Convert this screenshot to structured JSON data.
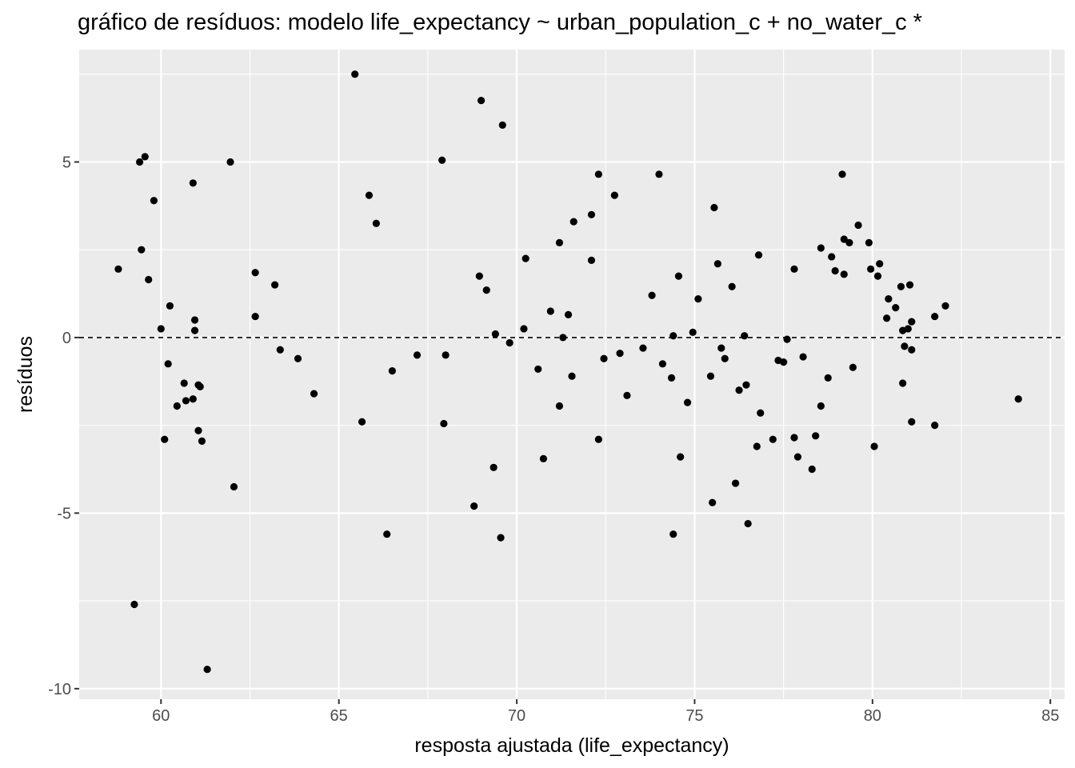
{
  "chart_data": {
    "type": "scatter",
    "title": "gráfico de resíduos: modelo life_expectancy ~ urban_population_c + no_water_c *",
    "xlabel": "resposta ajustada (life_expectancy)",
    "ylabel": "resíduos",
    "xlim": [
      57.7,
      85.4
    ],
    "ylim": [
      -10.3,
      8.2
    ],
    "x_ticks": [
      60,
      65,
      70,
      75,
      80,
      85
    ],
    "x_tick_labels": [
      "60",
      "65",
      "70",
      "75",
      "80",
      "85"
    ],
    "y_ticks": [
      -10,
      -5,
      0,
      5
    ],
    "y_tick_labels": [
      "-10",
      "-5",
      "0",
      "5"
    ],
    "reference_line": {
      "y": 0,
      "style": "dashed"
    },
    "grid": true,
    "colors": {
      "panel": "#ebebeb",
      "grid": "#ffffff",
      "point": "#000000"
    },
    "points": [
      [
        58.8,
        1.95
      ],
      [
        59.25,
        -7.6
      ],
      [
        59.4,
        5.0
      ],
      [
        59.45,
        2.5
      ],
      [
        59.55,
        5.15
      ],
      [
        59.65,
        1.65
      ],
      [
        59.8,
        3.9
      ],
      [
        60.0,
        0.25
      ],
      [
        60.1,
        -2.9
      ],
      [
        60.2,
        -0.75
      ],
      [
        60.25,
        0.9
      ],
      [
        60.45,
        -1.95
      ],
      [
        60.65,
        -1.3
      ],
      [
        60.7,
        -1.8
      ],
      [
        60.9,
        -1.75
      ],
      [
        60.9,
        4.4
      ],
      [
        60.95,
        0.2
      ],
      [
        60.95,
        0.5
      ],
      [
        61.05,
        -2.65
      ],
      [
        61.05,
        -1.35
      ],
      [
        61.1,
        -1.4
      ],
      [
        61.15,
        -2.95
      ],
      [
        61.3,
        -9.45
      ],
      [
        61.95,
        5.0
      ],
      [
        62.05,
        -4.25
      ],
      [
        62.65,
        1.85
      ],
      [
        62.65,
        0.6
      ],
      [
        63.2,
        1.5
      ],
      [
        63.35,
        -0.35
      ],
      [
        63.85,
        -0.6
      ],
      [
        64.3,
        -1.6
      ],
      [
        65.45,
        7.5
      ],
      [
        65.65,
        -2.4
      ],
      [
        65.85,
        4.05
      ],
      [
        66.05,
        3.25
      ],
      [
        66.35,
        -5.6
      ],
      [
        66.5,
        -0.95
      ],
      [
        67.2,
        -0.5
      ],
      [
        67.9,
        5.05
      ],
      [
        67.95,
        -2.45
      ],
      [
        68.0,
        -0.5
      ],
      [
        68.8,
        -4.8
      ],
      [
        68.95,
        1.75
      ],
      [
        69.0,
        6.75
      ],
      [
        69.15,
        1.35
      ],
      [
        69.35,
        -3.7
      ],
      [
        69.4,
        0.1
      ],
      [
        69.55,
        -5.7
      ],
      [
        69.6,
        6.05
      ],
      [
        69.8,
        -0.15
      ],
      [
        70.2,
        0.25
      ],
      [
        70.25,
        2.25
      ],
      [
        70.6,
        -0.9
      ],
      [
        70.75,
        -3.45
      ],
      [
        70.95,
        0.75
      ],
      [
        71.2,
        2.7
      ],
      [
        71.2,
        -1.95
      ],
      [
        71.3,
        -0.0
      ],
      [
        71.45,
        0.65
      ],
      [
        71.55,
        -1.1
      ],
      [
        71.6,
        3.3
      ],
      [
        72.1,
        3.5
      ],
      [
        72.1,
        2.2
      ],
      [
        72.3,
        4.65
      ],
      [
        72.3,
        -2.9
      ],
      [
        72.45,
        -0.6
      ],
      [
        72.75,
        4.05
      ],
      [
        72.9,
        -0.45
      ],
      [
        73.1,
        -1.65
      ],
      [
        73.55,
        -0.3
      ],
      [
        73.8,
        1.2
      ],
      [
        74.0,
        4.65
      ],
      [
        74.1,
        -0.75
      ],
      [
        74.35,
        -1.15
      ],
      [
        74.4,
        -5.6
      ],
      [
        74.4,
        0.05
      ],
      [
        74.55,
        1.75
      ],
      [
        74.6,
        -3.4
      ],
      [
        74.8,
        -1.85
      ],
      [
        74.95,
        0.15
      ],
      [
        75.1,
        1.1
      ],
      [
        75.45,
        -1.1
      ],
      [
        75.5,
        -4.7
      ],
      [
        75.55,
        3.7
      ],
      [
        75.65,
        2.1
      ],
      [
        75.75,
        -0.3
      ],
      [
        75.85,
        -0.6
      ],
      [
        76.05,
        1.45
      ],
      [
        76.15,
        -4.15
      ],
      [
        76.25,
        -1.5
      ],
      [
        76.4,
        0.05
      ],
      [
        76.45,
        -1.35
      ],
      [
        76.5,
        -5.3
      ],
      [
        76.75,
        -3.1
      ],
      [
        76.8,
        2.35
      ],
      [
        76.85,
        -2.15
      ],
      [
        77.2,
        -2.9
      ],
      [
        77.35,
        -0.65
      ],
      [
        77.5,
        -0.7
      ],
      [
        77.6,
        -0.05
      ],
      [
        77.8,
        1.95
      ],
      [
        77.8,
        -2.85
      ],
      [
        77.9,
        -3.4
      ],
      [
        78.05,
        -0.55
      ],
      [
        78.3,
        -3.75
      ],
      [
        78.4,
        -2.8
      ],
      [
        78.55,
        2.55
      ],
      [
        78.55,
        -1.95
      ],
      [
        78.75,
        -1.15
      ],
      [
        78.85,
        2.3
      ],
      [
        78.95,
        1.9
      ],
      [
        79.15,
        4.65
      ],
      [
        79.2,
        2.8
      ],
      [
        79.2,
        1.8
      ],
      [
        79.35,
        2.7
      ],
      [
        79.45,
        -0.85
      ],
      [
        79.6,
        3.2
      ],
      [
        79.9,
        2.7
      ],
      [
        79.95,
        1.95
      ],
      [
        80.05,
        -3.1
      ],
      [
        80.15,
        1.75
      ],
      [
        80.2,
        2.1
      ],
      [
        80.4,
        0.55
      ],
      [
        80.45,
        1.1
      ],
      [
        80.65,
        0.85
      ],
      [
        80.8,
        1.45
      ],
      [
        80.85,
        -1.3
      ],
      [
        80.85,
        0.2
      ],
      [
        80.9,
        -0.25
      ],
      [
        81.0,
        0.25
      ],
      [
        81.05,
        1.5
      ],
      [
        81.1,
        0.45
      ],
      [
        81.1,
        -0.35
      ],
      [
        81.1,
        -2.4
      ],
      [
        81.75,
        0.6
      ],
      [
        81.75,
        -2.5
      ],
      [
        82.05,
        0.9
      ],
      [
        84.1,
        -1.75
      ]
    ]
  }
}
